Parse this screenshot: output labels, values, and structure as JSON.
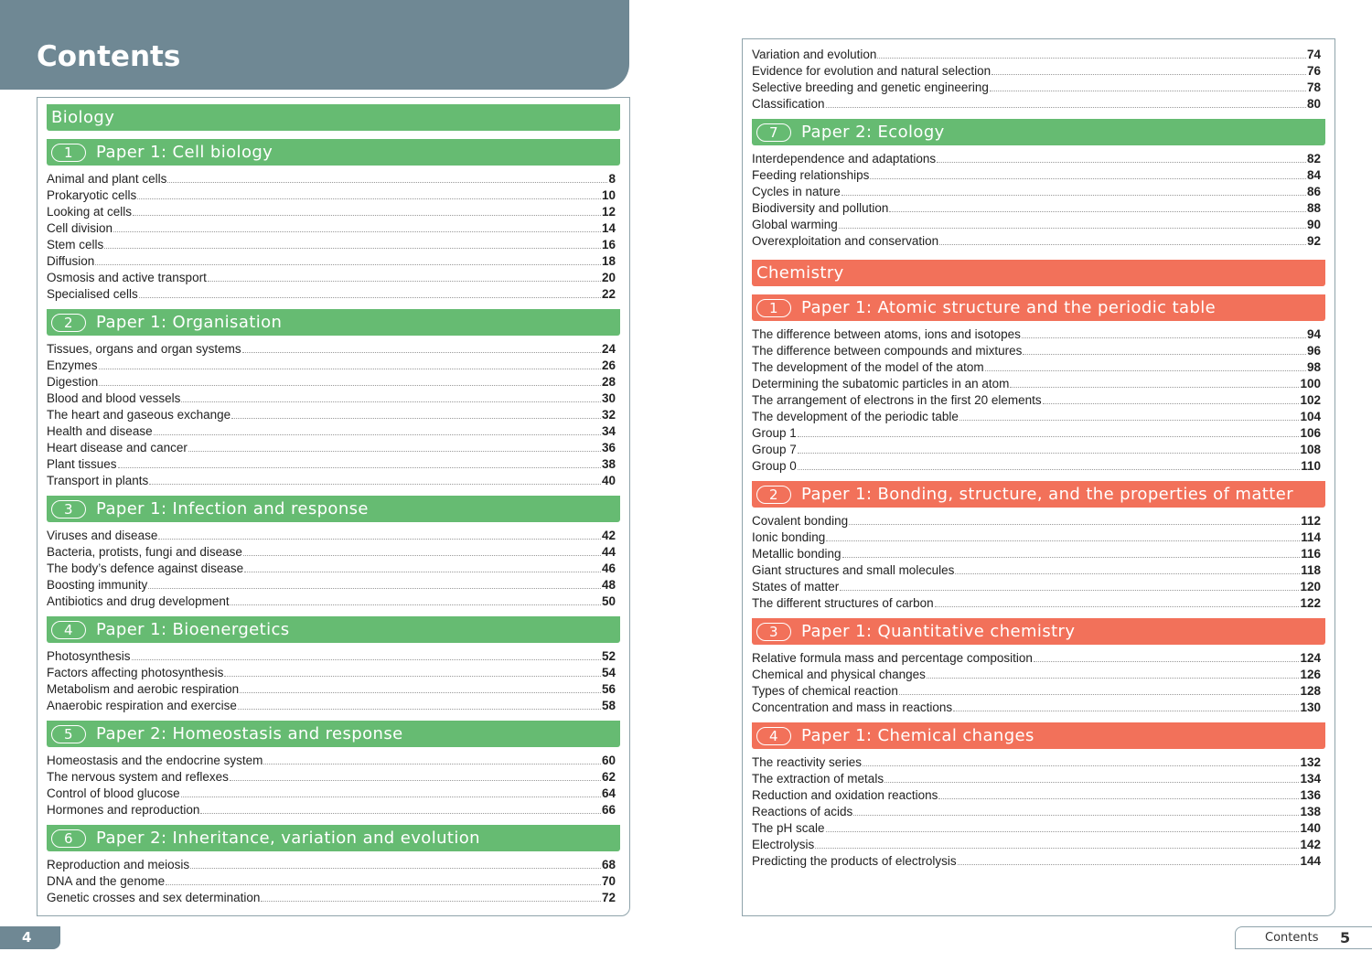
{
  "header": {
    "title": "Contents"
  },
  "left_page": {
    "page_number": 4,
    "sections": [
      {
        "subject": "Biology",
        "color": "#66bb72",
        "papers": [
          {
            "number": 1,
            "title": "Paper 1: Cell biology",
            "topics": [
              {
                "topic": "Animal and plant cells",
                "page": 8
              },
              {
                "topic": "Prokaryotic cells",
                "page": 10
              },
              {
                "topic": "Looking at cells",
                "page": 12
              },
              {
                "topic": "Cell division",
                "page": 14
              },
              {
                "topic": "Stem cells",
                "page": 16
              },
              {
                "topic": "Diffusion",
                "page": 18
              },
              {
                "topic": "Osmosis and active transport",
                "page": 20
              },
              {
                "topic": "Specialised cells",
                "page": 22
              }
            ]
          },
          {
            "number": 2,
            "title": "Paper 1: Organisation",
            "topics": [
              {
                "topic": "Tissues, organs and organ systems",
                "page": 24
              },
              {
                "topic": "Enzymes",
                "page": 26
              },
              {
                "topic": "Digestion",
                "page": 28
              },
              {
                "topic": "Blood and blood vessels",
                "page": 30
              },
              {
                "topic": "The heart and gaseous exchange",
                "page": 32
              },
              {
                "topic": "Health and disease",
                "page": 34
              },
              {
                "topic": "Heart disease and cancer",
                "page": 36
              },
              {
                "topic": "Plant tissues",
                "page": 38
              },
              {
                "topic": "Transport in plants",
                "page": 40
              }
            ]
          },
          {
            "number": 3,
            "title": "Paper 1: Infection and response",
            "topics": [
              {
                "topic": "Viruses and disease",
                "page": 42
              },
              {
                "topic": "Bacteria, protists, fungi and disease",
                "page": 44
              },
              {
                "topic": "The body’s defence against disease",
                "page": 46
              },
              {
                "topic": "Boosting immunity",
                "page": 48
              },
              {
                "topic": "Antibiotics and drug development",
                "page": 50
              }
            ]
          },
          {
            "number": 4,
            "title": "Paper 1: Bioenergetics",
            "topics": [
              {
                "topic": "Photosynthesis",
                "page": 52
              },
              {
                "topic": "Factors affecting photosynthesis",
                "page": 54
              },
              {
                "topic": "Metabolism and aerobic respiration",
                "page": 56
              },
              {
                "topic": "Anaerobic respiration and exercise",
                "page": 58
              }
            ]
          },
          {
            "number": 5,
            "title": "Paper 2: Homeostasis and response",
            "topics": [
              {
                "topic": "Homeostasis and the endocrine system",
                "page": 60
              },
              {
                "topic": "The nervous system and reflexes",
                "page": 62
              },
              {
                "topic": "Control of blood glucose",
                "page": 64
              },
              {
                "topic": "Hormones and reproduction",
                "page": 66
              }
            ]
          },
          {
            "number": 6,
            "title": "Paper 2: Inheritance, variation and evolution",
            "topics": [
              {
                "topic": "Reproduction and meiosis",
                "page": 68
              },
              {
                "topic": "DNA and the genome",
                "page": 70
              },
              {
                "topic": "Genetic crosses and sex determination",
                "page": 72
              }
            ]
          }
        ]
      }
    ]
  },
  "right_page": {
    "page_number": 5,
    "running_head": "Contents",
    "continued_topics": [
      {
        "topic": "Variation and evolution",
        "page": 74
      },
      {
        "topic": "Evidence for evolution and natural selection",
        "page": 76
      },
      {
        "topic": "Selective breeding and genetic engineering",
        "page": 78
      },
      {
        "topic": "Classification",
        "page": 80
      }
    ],
    "sections": [
      {
        "color": "#66bb72",
        "papers": [
          {
            "number": 7,
            "title": "Paper 2: Ecology",
            "topics": [
              {
                "topic": "Interdependence and adaptations",
                "page": 82
              },
              {
                "topic": "Feeding relationships",
                "page": 84
              },
              {
                "topic": "Cycles in nature",
                "page": 86
              },
              {
                "topic": "Biodiversity and pollution",
                "page": 88
              },
              {
                "topic": "Global warming",
                "page": 90
              },
              {
                "topic": "Overexploitation and conservation",
                "page": 92
              }
            ]
          }
        ]
      },
      {
        "subject": "Chemistry",
        "color": "#f2715a",
        "papers": [
          {
            "number": 1,
            "title": "Paper 1: Atomic structure and the periodic table",
            "topics": [
              {
                "topic": "The difference between atoms, ions and isotopes",
                "page": 94
              },
              {
                "topic": "The difference between compounds and mixtures",
                "page": 96
              },
              {
                "topic": "The development of the model of the atom",
                "page": 98
              },
              {
                "topic": "Determining the subatomic particles in an atom",
                "page": 100
              },
              {
                "topic": "The arrangement of electrons in the first 20 elements",
                "page": 102
              },
              {
                "topic": "The development of the periodic table",
                "page": 104
              },
              {
                "topic": "Group 1",
                "page": 106
              },
              {
                "topic": "Group 7",
                "page": 108
              },
              {
                "topic": "Group 0",
                "page": 110
              }
            ]
          },
          {
            "number": 2,
            "title": "Paper 1: Bonding, structure, and the properties of matter",
            "topics": [
              {
                "topic": "Covalent bonding",
                "page": 112
              },
              {
                "topic": "Ionic bonding",
                "page": 114
              },
              {
                "topic": "Metallic bonding",
                "page": 116
              },
              {
                "topic": "Giant structures and small molecules",
                "page": 118
              },
              {
                "topic": "States of matter",
                "page": 120
              },
              {
                "topic": "The different structures of carbon",
                "page": 122
              }
            ]
          },
          {
            "number": 3,
            "title": "Paper 1: Quantitative chemistry",
            "topics": [
              {
                "topic": "Relative formula mass and percentage composition",
                "page": 124
              },
              {
                "topic": "Chemical and physical changes",
                "page": 126
              },
              {
                "topic": "Types of chemical reaction",
                "page": 128
              },
              {
                "topic": "Concentration and mass in reactions",
                "page": 130
              }
            ]
          },
          {
            "number": 4,
            "title": "Paper 1: Chemical changes",
            "topics": [
              {
                "topic": "The reactivity series",
                "page": 132
              },
              {
                "topic": "The extraction of metals",
                "page": 134
              },
              {
                "topic": "Reduction and oxidation reactions",
                "page": 136
              },
              {
                "topic": "Reactions of acids",
                "page": 138
              },
              {
                "topic": "The pH scale",
                "page": 140
              },
              {
                "topic": "Electrolysis",
                "page": 142
              },
              {
                "topic": "Predicting the products of electrolysis",
                "page": 144
              }
            ]
          }
        ]
      }
    ]
  }
}
